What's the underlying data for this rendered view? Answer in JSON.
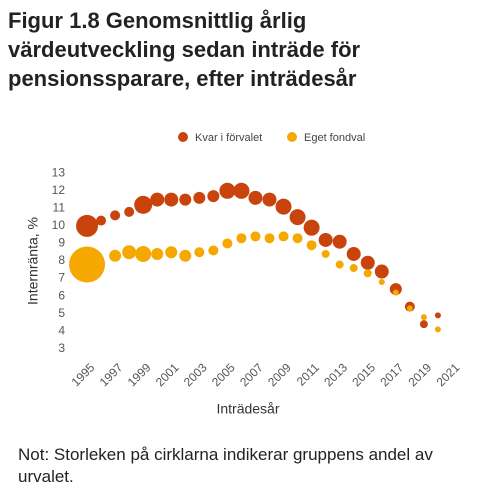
{
  "chart_data": {
    "type": "scatter",
    "title": "Figur 1.8 Genomsnittlig årlig värdeutveckling sedan inträde för pensionssparare, efter inträdesår",
    "note": "Not: Storleken på cirklarna indikerar gruppens andel av urvalet.",
    "x_label": "Inträdesår",
    "y_label": "Internränta, %",
    "x": [
      1995,
      1996,
      1997,
      1998,
      1999,
      2000,
      2001,
      2002,
      2003,
      2004,
      2005,
      2006,
      2007,
      2008,
      2009,
      2010,
      2011,
      2012,
      2013,
      2014,
      2015,
      2016,
      2017,
      2018,
      2019,
      2020,
      2021
    ],
    "series": [
      {
        "name": "Kvar i förvalet",
        "color": "#c9440c",
        "values": [
          10.0,
          10.3,
          10.6,
          10.8,
          11.2,
          11.5,
          11.5,
          11.5,
          11.6,
          11.7,
          12.0,
          12.0,
          11.6,
          11.5,
          11.1,
          10.5,
          9.9,
          9.2,
          9.1,
          8.4,
          7.9,
          7.4,
          6.4,
          5.4,
          4.4,
          4.9,
          null
        ],
        "sizes": [
          11,
          5,
          5,
          5,
          9,
          7,
          7,
          6,
          6,
          6,
          8,
          8,
          7,
          7,
          8,
          8,
          8,
          7,
          7,
          7,
          7,
          7,
          6,
          5,
          4,
          3,
          null
        ]
      },
      {
        "name": "Eget fondval",
        "color": "#f5a800",
        "values": [
          7.8,
          null,
          8.3,
          8.5,
          8.4,
          8.4,
          8.5,
          8.3,
          8.5,
          8.6,
          9.0,
          9.3,
          9.4,
          9.3,
          9.4,
          9.3,
          8.9,
          8.4,
          7.8,
          7.6,
          7.3,
          6.8,
          6.2,
          5.3,
          4.8,
          4.1,
          null
        ],
        "sizes": [
          18,
          null,
          6,
          7,
          8,
          6,
          6,
          6,
          5,
          5,
          5,
          5,
          5,
          5,
          5,
          5,
          5,
          4,
          4,
          4,
          4,
          3,
          3,
          3,
          3,
          3,
          null
        ]
      }
    ],
    "xlim": [
      1994,
      2022
    ],
    "ylim": [
      2.7,
      13.3
    ],
    "xticks": [
      1995,
      1997,
      1999,
      2001,
      2003,
      2005,
      2007,
      2009,
      2011,
      2013,
      2015,
      2017,
      2019,
      2021
    ],
    "yticks": [
      3,
      4,
      5,
      6,
      7,
      8,
      9,
      10,
      11,
      12,
      13
    ],
    "legend": "top"
  }
}
